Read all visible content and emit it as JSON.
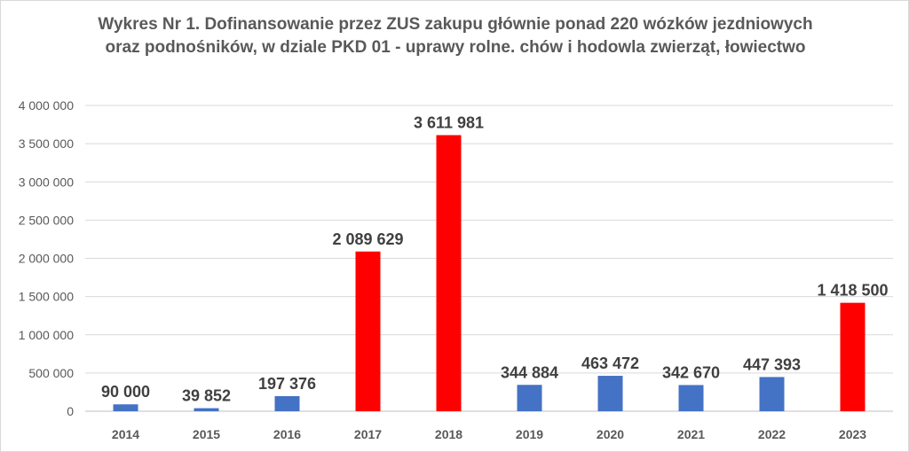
{
  "chart_data": {
    "type": "bar",
    "title": "Wykres Nr 1. Dofinansowanie przez ZUS zakupu głównie ponad  220 wózków jezdniowych oraz podnośników, w dziale PKD 01 - uprawy rolne. chów i hodowla zwierząt, łowiectwo",
    "categories": [
      "2014",
      "2015",
      "2016",
      "2017",
      "2018",
      "2019",
      "2020",
      "2021",
      "2022",
      "2023"
    ],
    "values": [
      90000,
      39852,
      197376,
      2089629,
      3611981,
      344884,
      463472,
      342670,
      447393,
      1418500
    ],
    "data_labels": [
      "90 000",
      "39 852",
      "197 376",
      "2 089 629",
      "3 611 981",
      "344 884",
      "463 472",
      "342 670",
      "447 393",
      "1 418 500"
    ],
    "bar_colors": [
      "#4472c4",
      "#4472c4",
      "#4472c4",
      "#ff0000",
      "#ff0000",
      "#4472c4",
      "#4472c4",
      "#4472c4",
      "#4472c4",
      "#ff0000"
    ],
    "y_ticks": [
      0,
      500000,
      1000000,
      1500000,
      2000000,
      2500000,
      3000000,
      3500000,
      4000000
    ],
    "y_tick_labels": [
      "0",
      "500 000",
      "1 000 000",
      "1 500 000",
      "2 000 000",
      "2 500 000",
      "3 000 000",
      "3 500 000",
      "4 000 000"
    ],
    "ylim": [
      0,
      4000000
    ],
    "xlabel": "",
    "ylabel": "",
    "grid": true,
    "gridline_color": "#d9d9d9",
    "legend": "none"
  }
}
